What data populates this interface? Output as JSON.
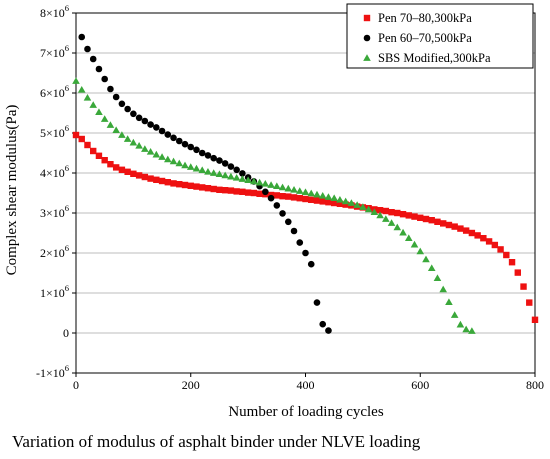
{
  "chart_data": {
    "type": "scatter",
    "title": "",
    "caption": "Variation of modulus of asphalt binder under NLVE loading",
    "xlabel": "Number of loading cycles",
    "ylabel": "Complex shear modulus(Pa)",
    "xlim": [
      0,
      800
    ],
    "ylim": [
      -1000000,
      8000000
    ],
    "x_ticks": [
      {
        "value": 0,
        "label": "0"
      },
      {
        "value": 200,
        "label": "200"
      },
      {
        "value": 400,
        "label": "400"
      },
      {
        "value": 600,
        "label": "600"
      },
      {
        "value": 800,
        "label": "800"
      }
    ],
    "y_ticks": [
      {
        "value": -1000000,
        "base": "-1×10",
        "exp": "6"
      },
      {
        "value": 0,
        "base": "0",
        "exp": ""
      },
      {
        "value": 1000000,
        "base": "1×10",
        "exp": "6"
      },
      {
        "value": 2000000,
        "base": "2×10",
        "exp": "6"
      },
      {
        "value": 3000000,
        "base": "3×10",
        "exp": "6"
      },
      {
        "value": 4000000,
        "base": "4×10",
        "exp": "6"
      },
      {
        "value": 5000000,
        "base": "5×10",
        "exp": "6"
      },
      {
        "value": 6000000,
        "base": "6×10",
        "exp": "6"
      },
      {
        "value": 7000000,
        "base": "7×10",
        "exp": "6"
      },
      {
        "value": 8000000,
        "base": "8×10",
        "exp": "6"
      }
    ],
    "grid": "horizontal",
    "legend_position": "top-right",
    "series": [
      {
        "name": "Pen 70–80,300kPa",
        "marker": "square",
        "color": "#ee1111",
        "points": [
          [
            0,
            4950000
          ],
          [
            10,
            4850000
          ],
          [
            20,
            4700000
          ],
          [
            30,
            4550000
          ],
          [
            40,
            4430000
          ],
          [
            50,
            4320000
          ],
          [
            60,
            4220000
          ],
          [
            70,
            4140000
          ],
          [
            80,
            4080000
          ],
          [
            90,
            4030000
          ],
          [
            100,
            3980000
          ],
          [
            110,
            3940000
          ],
          [
            120,
            3900000
          ],
          [
            130,
            3860000
          ],
          [
            140,
            3830000
          ],
          [
            150,
            3800000
          ],
          [
            160,
            3770000
          ],
          [
            170,
            3740000
          ],
          [
            180,
            3720000
          ],
          [
            190,
            3700000
          ],
          [
            200,
            3680000
          ],
          [
            210,
            3660000
          ],
          [
            220,
            3640000
          ],
          [
            230,
            3620000
          ],
          [
            240,
            3600000
          ],
          [
            250,
            3580000
          ],
          [
            260,
            3570000
          ],
          [
            270,
            3560000
          ],
          [
            280,
            3540000
          ],
          [
            290,
            3530000
          ],
          [
            300,
            3510000
          ],
          [
            310,
            3500000
          ],
          [
            320,
            3480000
          ],
          [
            330,
            3470000
          ],
          [
            340,
            3450000
          ],
          [
            350,
            3440000
          ],
          [
            360,
            3420000
          ],
          [
            370,
            3410000
          ],
          [
            380,
            3390000
          ],
          [
            390,
            3370000
          ],
          [
            400,
            3350000
          ],
          [
            410,
            3330000
          ],
          [
            420,
            3310000
          ],
          [
            430,
            3290000
          ],
          [
            440,
            3270000
          ],
          [
            450,
            3250000
          ],
          [
            460,
            3230000
          ],
          [
            470,
            3210000
          ],
          [
            480,
            3190000
          ],
          [
            490,
            3160000
          ],
          [
            500,
            3140000
          ],
          [
            510,
            3120000
          ],
          [
            520,
            3090000
          ],
          [
            530,
            3070000
          ],
          [
            540,
            3050000
          ],
          [
            550,
            3020000
          ],
          [
            560,
            3000000
          ],
          [
            570,
            2970000
          ],
          [
            580,
            2940000
          ],
          [
            590,
            2910000
          ],
          [
            600,
            2880000
          ],
          [
            610,
            2850000
          ],
          [
            620,
            2820000
          ],
          [
            630,
            2780000
          ],
          [
            640,
            2740000
          ],
          [
            650,
            2700000
          ],
          [
            660,
            2660000
          ],
          [
            670,
            2610000
          ],
          [
            680,
            2560000
          ],
          [
            690,
            2500000
          ],
          [
            700,
            2440000
          ],
          [
            710,
            2370000
          ],
          [
            720,
            2290000
          ],
          [
            730,
            2200000
          ],
          [
            740,
            2090000
          ],
          [
            750,
            1950000
          ],
          [
            760,
            1770000
          ],
          [
            770,
            1510000
          ],
          [
            780,
            1160000
          ],
          [
            790,
            760000
          ],
          [
            800,
            330000
          ]
        ]
      },
      {
        "name": "Pen 60–70,500kPa",
        "marker": "circle",
        "color": "#000000",
        "points": [
          [
            10,
            7400000
          ],
          [
            20,
            7100000
          ],
          [
            30,
            6850000
          ],
          [
            40,
            6600000
          ],
          [
            50,
            6350000
          ],
          [
            60,
            6100000
          ],
          [
            70,
            5900000
          ],
          [
            80,
            5730000
          ],
          [
            90,
            5600000
          ],
          [
            100,
            5480000
          ],
          [
            110,
            5380000
          ],
          [
            120,
            5300000
          ],
          [
            130,
            5210000
          ],
          [
            140,
            5140000
          ],
          [
            150,
            5050000
          ],
          [
            160,
            4960000
          ],
          [
            170,
            4880000
          ],
          [
            180,
            4800000
          ],
          [
            190,
            4720000
          ],
          [
            200,
            4650000
          ],
          [
            210,
            4580000
          ],
          [
            220,
            4500000
          ],
          [
            230,
            4440000
          ],
          [
            240,
            4370000
          ],
          [
            250,
            4310000
          ],
          [
            260,
            4240000
          ],
          [
            270,
            4160000
          ],
          [
            280,
            4080000
          ],
          [
            290,
            3990000
          ],
          [
            300,
            3890000
          ],
          [
            310,
            3790000
          ],
          [
            320,
            3670000
          ],
          [
            330,
            3530000
          ],
          [
            340,
            3370000
          ],
          [
            350,
            3190000
          ],
          [
            360,
            2990000
          ],
          [
            370,
            2780000
          ],
          [
            380,
            2550000
          ],
          [
            390,
            2260000
          ],
          [
            400,
            2000000
          ],
          [
            410,
            1720000
          ],
          [
            420,
            760000
          ],
          [
            430,
            220000
          ],
          [
            440,
            60000
          ]
        ]
      },
      {
        "name": "SBS Modified,300kPa",
        "marker": "triangle",
        "color": "#3aa83a",
        "points": [
          [
            0,
            6300000
          ],
          [
            10,
            6080000
          ],
          [
            20,
            5880000
          ],
          [
            30,
            5700000
          ],
          [
            40,
            5520000
          ],
          [
            50,
            5350000
          ],
          [
            60,
            5200000
          ],
          [
            70,
            5070000
          ],
          [
            80,
            4950000
          ],
          [
            90,
            4850000
          ],
          [
            100,
            4760000
          ],
          [
            110,
            4680000
          ],
          [
            120,
            4600000
          ],
          [
            130,
            4530000
          ],
          [
            140,
            4460000
          ],
          [
            150,
            4400000
          ],
          [
            160,
            4340000
          ],
          [
            170,
            4290000
          ],
          [
            180,
            4240000
          ],
          [
            190,
            4190000
          ],
          [
            200,
            4150000
          ],
          [
            210,
            4110000
          ],
          [
            220,
            4070000
          ],
          [
            230,
            4030000
          ],
          [
            240,
            4000000
          ],
          [
            250,
            3970000
          ],
          [
            260,
            3940000
          ],
          [
            270,
            3910000
          ],
          [
            280,
            3880000
          ],
          [
            290,
            3850000
          ],
          [
            300,
            3820000
          ],
          [
            310,
            3790000
          ],
          [
            320,
            3760000
          ],
          [
            330,
            3730000
          ],
          [
            340,
            3700000
          ],
          [
            350,
            3670000
          ],
          [
            360,
            3640000
          ],
          [
            370,
            3610000
          ],
          [
            380,
            3580000
          ],
          [
            390,
            3550000
          ],
          [
            400,
            3520000
          ],
          [
            410,
            3490000
          ],
          [
            420,
            3460000
          ],
          [
            430,
            3430000
          ],
          [
            440,
            3400000
          ],
          [
            450,
            3370000
          ],
          [
            460,
            3330000
          ],
          [
            470,
            3290000
          ],
          [
            480,
            3250000
          ],
          [
            490,
            3200000
          ],
          [
            500,
            3150000
          ],
          [
            510,
            3090000
          ],
          [
            520,
            3020000
          ],
          [
            530,
            2940000
          ],
          [
            540,
            2850000
          ],
          [
            550,
            2750000
          ],
          [
            560,
            2640000
          ],
          [
            570,
            2510000
          ],
          [
            580,
            2370000
          ],
          [
            590,
            2210000
          ],
          [
            600,
            2040000
          ],
          [
            610,
            1840000
          ],
          [
            620,
            1620000
          ],
          [
            630,
            1370000
          ],
          [
            640,
            1090000
          ],
          [
            650,
            770000
          ],
          [
            660,
            450000
          ],
          [
            670,
            210000
          ],
          [
            680,
            90000
          ],
          [
            690,
            50000
          ]
        ]
      }
    ]
  }
}
